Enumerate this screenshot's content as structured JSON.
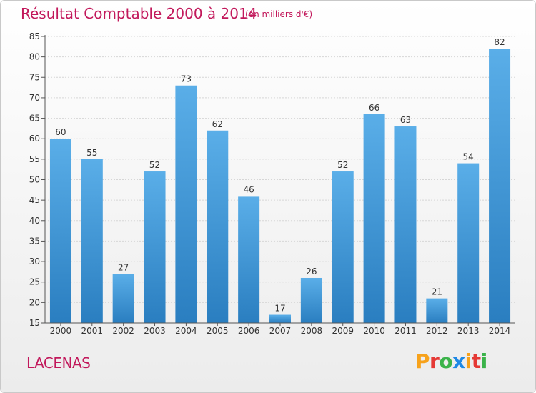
{
  "page": {
    "title": "Résultat Comptable 2000 à 2014",
    "subtitle": "(en milliers d'€)",
    "commune": "LACENAS",
    "logo_text": "Proxiti"
  },
  "colors": {
    "title": "#c2185b",
    "bar_top": "#5aaee8",
    "bar_bottom": "#2a7ec0"
  },
  "chart_data": {
    "type": "bar",
    "title": "Résultat Comptable 2000 à 2014",
    "subtitle": "(en milliers d'€)",
    "xlabel": "",
    "ylabel": "",
    "categories": [
      "2000",
      "2001",
      "2002",
      "2003",
      "2004",
      "2005",
      "2006",
      "2007",
      "2008",
      "2009",
      "2010",
      "2011",
      "2012",
      "2013",
      "2014"
    ],
    "values": [
      60,
      55,
      27,
      52,
      73,
      62,
      46,
      17,
      26,
      52,
      66,
      63,
      21,
      54,
      82
    ],
    "ylim": [
      15,
      85
    ],
    "yticks": [
      15,
      20,
      25,
      30,
      35,
      40,
      45,
      50,
      55,
      60,
      65,
      70,
      75,
      80,
      85
    ],
    "grid": true
  }
}
